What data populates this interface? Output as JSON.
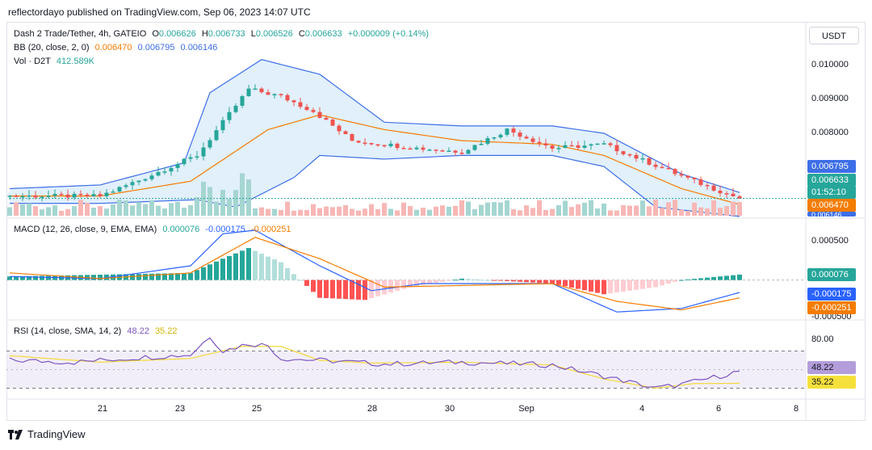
{
  "header": "reflectordayo published on TradingView.com, Sep 06, 2023 14:07 UTC",
  "currency_button": "USDT",
  "footer_brand": "TradingView",
  "colors": {
    "up": "#26a69a",
    "down": "#ef5350",
    "bb_basis": "#f57c00",
    "bb_band": "#3d6ee8",
    "bb_fill": "#e1f0fb",
    "macd": "#2962ff",
    "signal": "#f57c00",
    "rsi": "#7e57c2",
    "rsi_ma": "#f5d93b"
  },
  "legend_main": {
    "symbol": "Dash 2 Trade/Tether, 4h, GATEIO",
    "o_label": "O",
    "o": "0.006626",
    "h_label": "H",
    "h": "0.006733",
    "l_label": "L",
    "l": "0.006526",
    "c_label": "C",
    "c": "0.006633",
    "change": "+0.000009 (+0.14%)"
  },
  "legend_bb": {
    "name": "BB (20, close, 2, 0)",
    "basis": "0.006470",
    "upper": "0.006795",
    "lower": "0.006146"
  },
  "legend_vol": {
    "name": "Vol · D2T",
    "value": "412.589K"
  },
  "legend_macd": {
    "name": "MACD (12, 26, close, 9, EMA, EMA)",
    "hist": "0.000076",
    "macd": "-0.000175",
    "signal": "-0.000251"
  },
  "legend_rsi": {
    "name": "RSI (14, close, SMA, 14, 2)",
    "rsi": "48.22",
    "ma": "35.22"
  },
  "price_ticks": [
    "0.010000",
    "0.009000",
    "0.008000"
  ],
  "macd_ticks": [
    "0.000500"
  ],
  "macd_clipped_tick": "-0.000500",
  "rsi_ticks": [
    "80.00"
  ],
  "tags": {
    "bb_upper": "0.006795",
    "last": "0.006633",
    "countdown": "01:52:10",
    "bb_basis": "0.006470",
    "bb_lower": "0.006146",
    "macd_hist": "0.000076",
    "macd": "-0.000175",
    "signal": "-0.000251",
    "rsi": "48.22",
    "rsi_ma": "35.22"
  },
  "x_labels": [
    "21",
    "23",
    "25",
    "28",
    "30",
    "Sep",
    "4",
    "6",
    "8"
  ],
  "chart_data": {
    "type": "candlestick",
    "price_axis": {
      "range": [
        0.0061,
        0.0107
      ],
      "ticks": [
        0.01,
        0.009,
        0.008
      ]
    },
    "candle_count": 114,
    "milestones": [
      [
        0,
        0.0067
      ],
      [
        14,
        0.0067
      ],
      [
        21,
        0.0072
      ],
      [
        29,
        0.0078
      ],
      [
        33,
        0.0087
      ],
      [
        37,
        0.0096
      ],
      [
        42,
        0.0094
      ],
      [
        47,
        0.009
      ],
      [
        53,
        0.0082
      ],
      [
        63,
        0.008
      ],
      [
        70,
        0.0079
      ],
      [
        77,
        0.0085
      ],
      [
        84,
        0.008
      ],
      [
        92,
        0.0081
      ],
      [
        99,
        0.0076
      ],
      [
        106,
        0.0071
      ],
      [
        113,
        0.00663
      ]
    ],
    "bb_basis_milestones": [
      [
        0,
        0.0067
      ],
      [
        14,
        0.0067
      ],
      [
        28,
        0.0071
      ],
      [
        40,
        0.0085
      ],
      [
        48,
        0.0089
      ],
      [
        58,
        0.0085
      ],
      [
        70,
        0.0082
      ],
      [
        84,
        0.0081
      ],
      [
        92,
        0.0078
      ],
      [
        104,
        0.0069
      ],
      [
        113,
        0.00647
      ]
    ],
    "bb_upper_milestones": [
      [
        0,
        0.0069
      ],
      [
        14,
        0.007
      ],
      [
        27,
        0.0076
      ],
      [
        31,
        0.0095
      ],
      [
        39,
        0.0104
      ],
      [
        48,
        0.01
      ],
      [
        58,
        0.0087
      ],
      [
        70,
        0.0086
      ],
      [
        84,
        0.0086
      ],
      [
        92,
        0.0084
      ],
      [
        104,
        0.0073
      ],
      [
        113,
        0.006795
      ]
    ],
    "bb_lower_milestones": [
      [
        0,
        0.0065
      ],
      [
        14,
        0.0065
      ],
      [
        29,
        0.0066
      ],
      [
        35,
        0.0064
      ],
      [
        44,
        0.0072
      ],
      [
        48,
        0.0078
      ],
      [
        58,
        0.0077
      ],
      [
        70,
        0.0078
      ],
      [
        84,
        0.0078
      ],
      [
        92,
        0.0075
      ],
      [
        100,
        0.0064
      ],
      [
        113,
        0.006146
      ]
    ],
    "macd": {
      "range": [
        -0.00055,
        0.0007
      ],
      "ticks": [
        0.0005
      ],
      "hist_milestones": [
        [
          0,
          5e-05
        ],
        [
          28,
          0.0001
        ],
        [
          33,
          0.0003
        ],
        [
          37,
          0.00045
        ],
        [
          42,
          0.00025
        ],
        [
          45,
          0.0
        ],
        [
          48,
          -0.00025
        ],
        [
          55,
          -0.00028
        ],
        [
          62,
          -0.0001
        ],
        [
          70,
          2e-05
        ],
        [
          84,
          -5e-05
        ],
        [
          92,
          -0.0002
        ],
        [
          100,
          -0.0001
        ],
        [
          104,
          0.0
        ],
        [
          113,
          7.6e-05
        ]
      ],
      "macd_milestones": [
        [
          0,
          5e-05
        ],
        [
          14,
          2e-05
        ],
        [
          28,
          0.0002
        ],
        [
          33,
          0.00065
        ],
        [
          38,
          0.0007
        ],
        [
          48,
          0.0002
        ],
        [
          56,
          -0.00015
        ],
        [
          64,
          -5e-05
        ],
        [
          84,
          -5e-05
        ],
        [
          94,
          -0.00045
        ],
        [
          104,
          -0.0004
        ],
        [
          113,
          -0.000175
        ]
      ],
      "signal_milestones": [
        [
          0,
          0.0001
        ],
        [
          14,
          2e-05
        ],
        [
          28,
          0.0001
        ],
        [
          38,
          0.0006
        ],
        [
          48,
          0.0003
        ],
        [
          58,
          -0.0001
        ],
        [
          84,
          -5e-05
        ],
        [
          94,
          -0.0003
        ],
        [
          104,
          -0.00042
        ],
        [
          113,
          -0.000251
        ]
      ]
    },
    "rsi": {
      "range": [
        20,
        100
      ],
      "ticks": [
        80
      ],
      "upper_band": 70,
      "lower_band": 30,
      "rsi_milestones": [
        [
          0,
          60
        ],
        [
          10,
          58
        ],
        [
          20,
          63
        ],
        [
          28,
          66
        ],
        [
          31,
          86
        ],
        [
          33,
          70
        ],
        [
          37,
          78
        ],
        [
          40,
          76
        ],
        [
          42,
          62
        ],
        [
          48,
          60
        ],
        [
          58,
          56
        ],
        [
          70,
          58
        ],
        [
          84,
          55
        ],
        [
          92,
          43
        ],
        [
          100,
          30
        ],
        [
          104,
          34
        ],
        [
          108,
          40
        ],
        [
          113,
          48.22
        ]
      ],
      "ma_milestones": [
        [
          0,
          65
        ],
        [
          14,
          58
        ],
        [
          28,
          62
        ],
        [
          36,
          75
        ],
        [
          42,
          75
        ],
        [
          48,
          60
        ],
        [
          56,
          57
        ],
        [
          70,
          58
        ],
        [
          84,
          55
        ],
        [
          92,
          40
        ],
        [
          100,
          30
        ],
        [
          106,
          35
        ],
        [
          113,
          35.22
        ]
      ]
    }
  }
}
